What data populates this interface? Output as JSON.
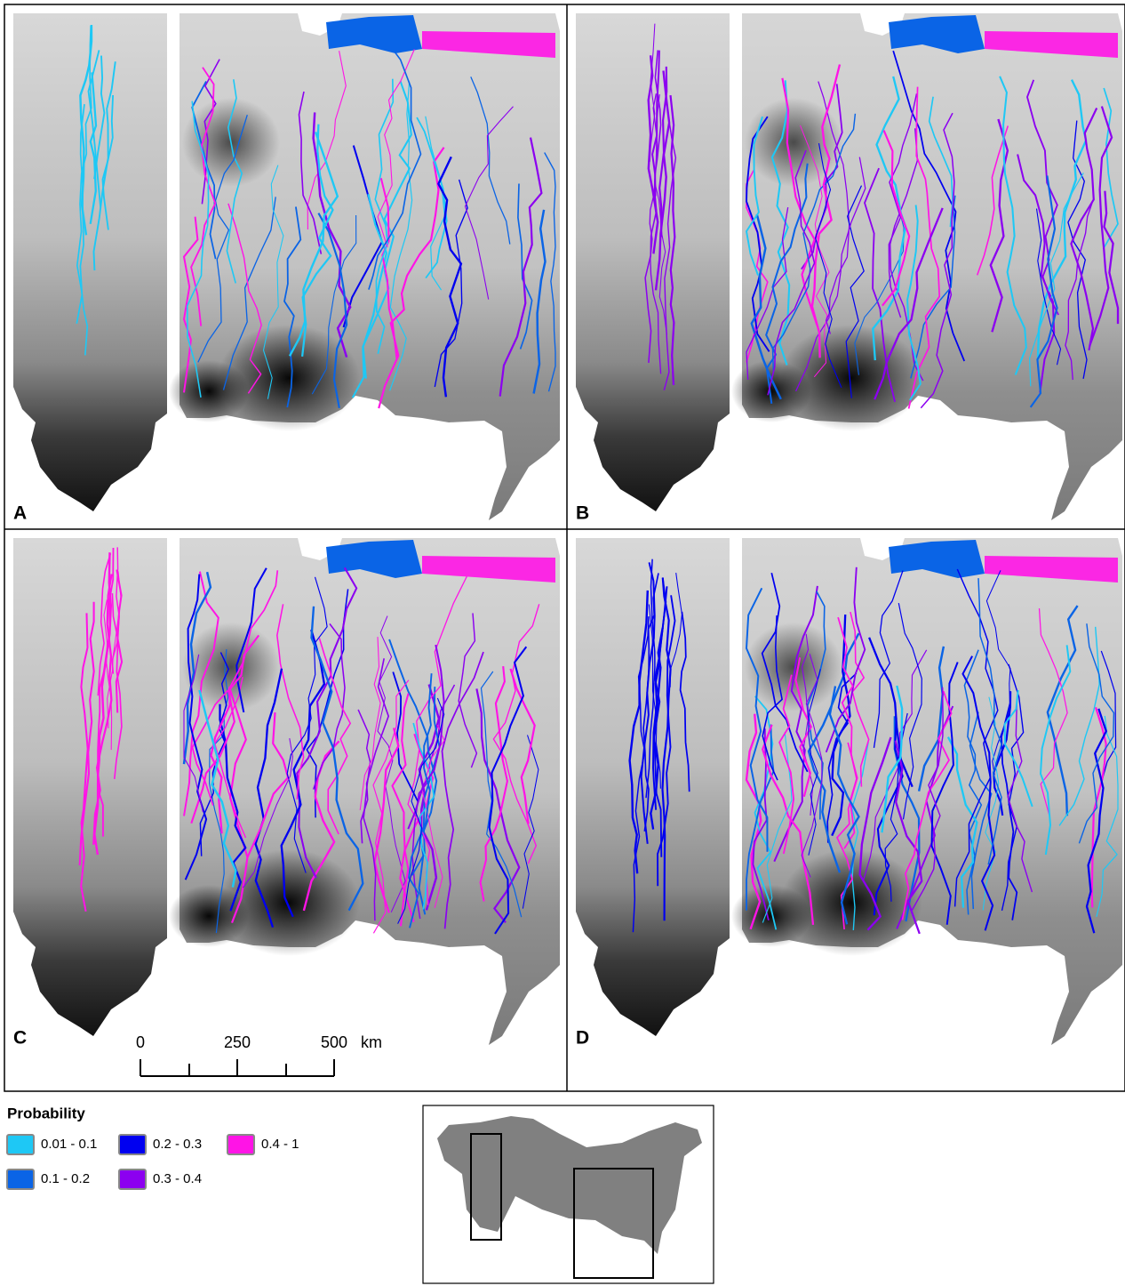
{
  "panels": [
    {
      "label": "A"
    },
    {
      "label": "B"
    },
    {
      "label": "C"
    },
    {
      "label": "D"
    }
  ],
  "scale_bar": {
    "ticks": [
      0,
      250,
      500
    ],
    "unit": "km"
  },
  "legend": {
    "title": "Probability",
    "items": [
      {
        "label": "0.01 - 0.1",
        "color": "#1ec8f5"
      },
      {
        "label": "0.1 - 0.2",
        "color": "#0a64e6"
      },
      {
        "label": "0.2 - 0.3",
        "color": "#0000f0"
      },
      {
        "label": "0.3 - 0.4",
        "color": "#8c00f0"
      },
      {
        "label": "0.4 - 1",
        "color": "#ff14e6"
      }
    ]
  }
}
